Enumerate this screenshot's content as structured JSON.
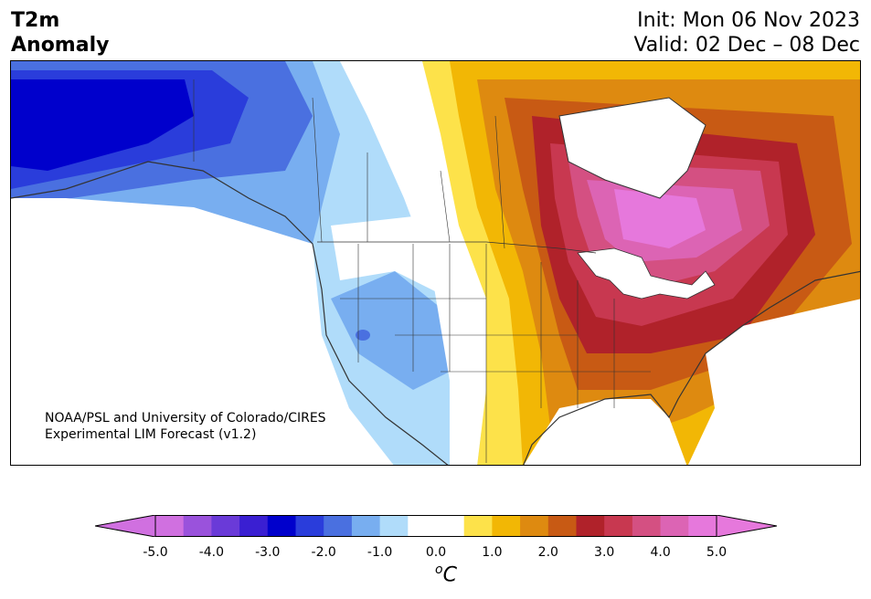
{
  "header": {
    "title_line1": "T2m",
    "title_line2": "Anomaly",
    "init_text": "Init: Mon 06 Nov 2023",
    "valid_text": "Valid: 02 Dec – 08 Dec"
  },
  "credit": {
    "line1": "NOAA/PSL and University of Colorado/CIRES",
    "line2": "Experimental LIM Forecast (v1.2)"
  },
  "colorbar": {
    "unit_base": "C",
    "unit_sup": "o",
    "ticks": [
      "-5.0",
      "-4.0",
      "-3.0",
      "-2.0",
      "-1.0",
      "0.0",
      "1.0",
      "2.0",
      "3.0",
      "4.0",
      "5.0"
    ],
    "colors": [
      "#d070e0",
      "#9a52dc",
      "#6a3ad8",
      "#3a1fd2",
      "#0000cc",
      "#2a3ddb",
      "#4a70e0",
      "#78aef0",
      "#b0dcfa",
      "#ffffff",
      "#ffffff",
      "#fde24a",
      "#f2b705",
      "#de8a10",
      "#c85a14",
      "#b0222a",
      "#c83850",
      "#d45082",
      "#dc64b4",
      "#e678dc"
    ],
    "extend_low": "#d070e0",
    "extend_high": "#e678dc"
  },
  "map": {
    "region": "North America",
    "variable": "2m temperature anomaly",
    "colors": {
      "strong_cold": "#0000cc",
      "cold": "#2a3ddb",
      "mid_cold": "#4a70e0",
      "cool": "#78aef0",
      "light_cool": "#b0dcfa",
      "neutral": "#ffffff",
      "light_warm": "#fde24a",
      "warm": "#f2b705",
      "orange": "#de8a10",
      "dark_orange": "#c85a14",
      "red": "#b0222a",
      "crimson": "#c83850",
      "rose": "#d45082",
      "pink": "#dc64b4",
      "magenta": "#e678dc"
    }
  }
}
